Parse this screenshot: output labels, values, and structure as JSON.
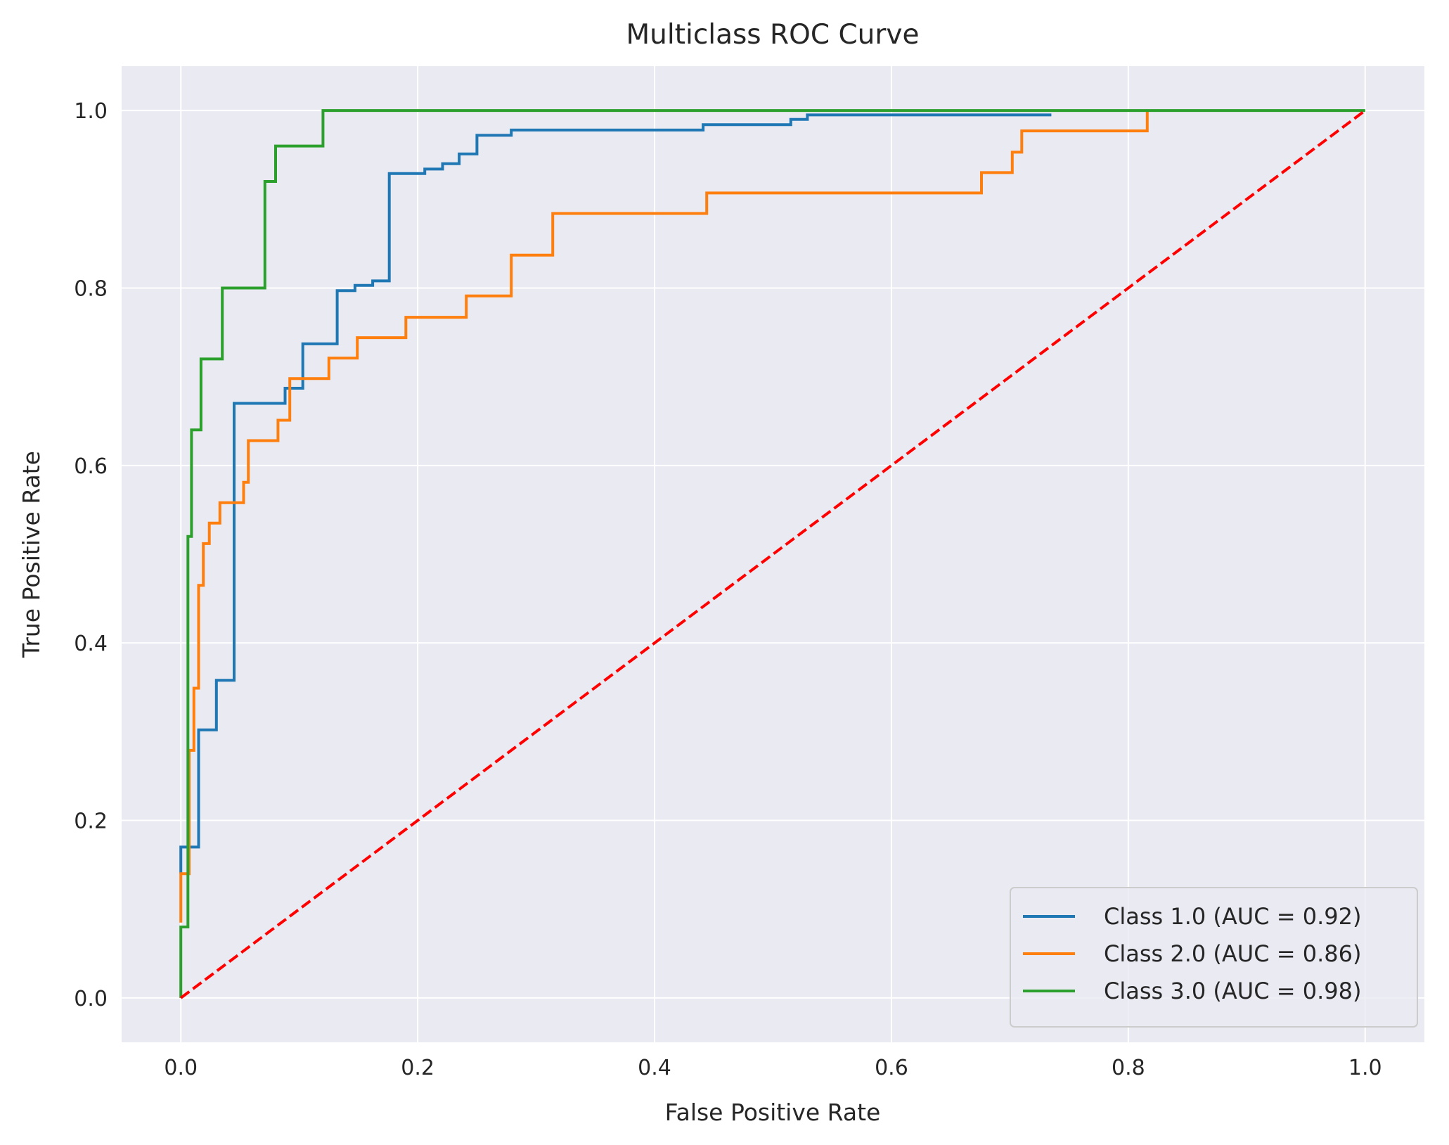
{
  "chart_data": {
    "type": "line",
    "title": "Multiclass ROC Curve",
    "xlabel": "False Positive Rate",
    "ylabel": "True Positive Rate",
    "xlim": [
      -0.05,
      1.05
    ],
    "ylim": [
      -0.05,
      1.05
    ],
    "xticks": [
      0.0,
      0.2,
      0.4,
      0.6,
      0.8,
      1.0
    ],
    "yticks": [
      0.0,
      0.2,
      0.4,
      0.6,
      0.8,
      1.0
    ],
    "xtick_labels": [
      "0.0",
      "0.2",
      "0.4",
      "0.6",
      "0.8",
      "1.0"
    ],
    "ytick_labels": [
      "0.0",
      "0.2",
      "0.4",
      "0.6",
      "0.8",
      "1.0"
    ],
    "grid": true,
    "background_color": "#eaeaf2",
    "legend_position": "lower right",
    "series": [
      {
        "name": "Class 1.0 (AUC = 0.92)",
        "color": "#1f77b4",
        "style": "solid",
        "x": [
          0.0,
          0.0,
          0.015,
          0.015,
          0.03,
          0.03,
          0.045,
          0.045,
          0.088,
          0.088,
          0.103,
          0.103,
          0.132,
          0.132,
          0.147,
          0.147,
          0.162,
          0.162,
          0.176,
          0.176,
          0.206,
          0.206,
          0.221,
          0.221,
          0.235,
          0.235,
          0.25,
          0.25,
          0.279,
          0.279,
          0.441,
          0.441,
          0.515,
          0.515,
          0.529,
          0.529,
          0.735
        ],
        "y": [
          0.14,
          0.17,
          0.17,
          0.302,
          0.302,
          0.358,
          0.358,
          0.67,
          0.67,
          0.687,
          0.687,
          0.737,
          0.737,
          0.797,
          0.797,
          0.803,
          0.803,
          0.808,
          0.808,
          0.929,
          0.929,
          0.934,
          0.934,
          0.94,
          0.94,
          0.951,
          0.951,
          0.972,
          0.972,
          0.978,
          0.978,
          0.984,
          0.984,
          0.99,
          0.99,
          0.995,
          0.995
        ]
      },
      {
        "name": "Class 2.0 (AUC = 0.86)",
        "color": "#ff7f0e",
        "style": "solid",
        "x": [
          0.0,
          0.0,
          0.007,
          0.007,
          0.011,
          0.011,
          0.015,
          0.015,
          0.019,
          0.019,
          0.024,
          0.024,
          0.033,
          0.033,
          0.053,
          0.053,
          0.057,
          0.057,
          0.082,
          0.082,
          0.092,
          0.092,
          0.125,
          0.125,
          0.149,
          0.149,
          0.19,
          0.19,
          0.241,
          0.241,
          0.279,
          0.279,
          0.314,
          0.314,
          0.444,
          0.444,
          0.676,
          0.676,
          0.702,
          0.702,
          0.71,
          0.71,
          0.816,
          0.816
        ],
        "y": [
          0.085,
          0.14,
          0.14,
          0.279,
          0.279,
          0.349,
          0.349,
          0.465,
          0.465,
          0.512,
          0.512,
          0.535,
          0.535,
          0.558,
          0.558,
          0.581,
          0.581,
          0.628,
          0.628,
          0.651,
          0.651,
          0.698,
          0.698,
          0.721,
          0.721,
          0.744,
          0.744,
          0.767,
          0.767,
          0.791,
          0.791,
          0.837,
          0.837,
          0.884,
          0.884,
          0.907,
          0.907,
          0.93,
          0.93,
          0.953,
          0.953,
          0.977,
          0.977,
          1.0
        ]
      },
      {
        "name": "Class 3.0 (AUC = 0.98)",
        "color": "#2ca02c",
        "style": "solid",
        "x": [
          0.0,
          0.0,
          0.006,
          0.006,
          0.009,
          0.009,
          0.017,
          0.017,
          0.035,
          0.035,
          0.071,
          0.071,
          0.08,
          0.08,
          0.12,
          0.12,
          1.0
        ],
        "y": [
          0.0,
          0.08,
          0.08,
          0.52,
          0.52,
          0.64,
          0.64,
          0.72,
          0.72,
          0.8,
          0.8,
          0.92,
          0.92,
          0.96,
          0.96,
          1.0,
          1.0
        ]
      },
      {
        "name": "",
        "color": "#ff0000",
        "style": "dashed",
        "x": [
          0.0,
          1.0
        ],
        "y": [
          0.0,
          1.0
        ]
      }
    ]
  }
}
